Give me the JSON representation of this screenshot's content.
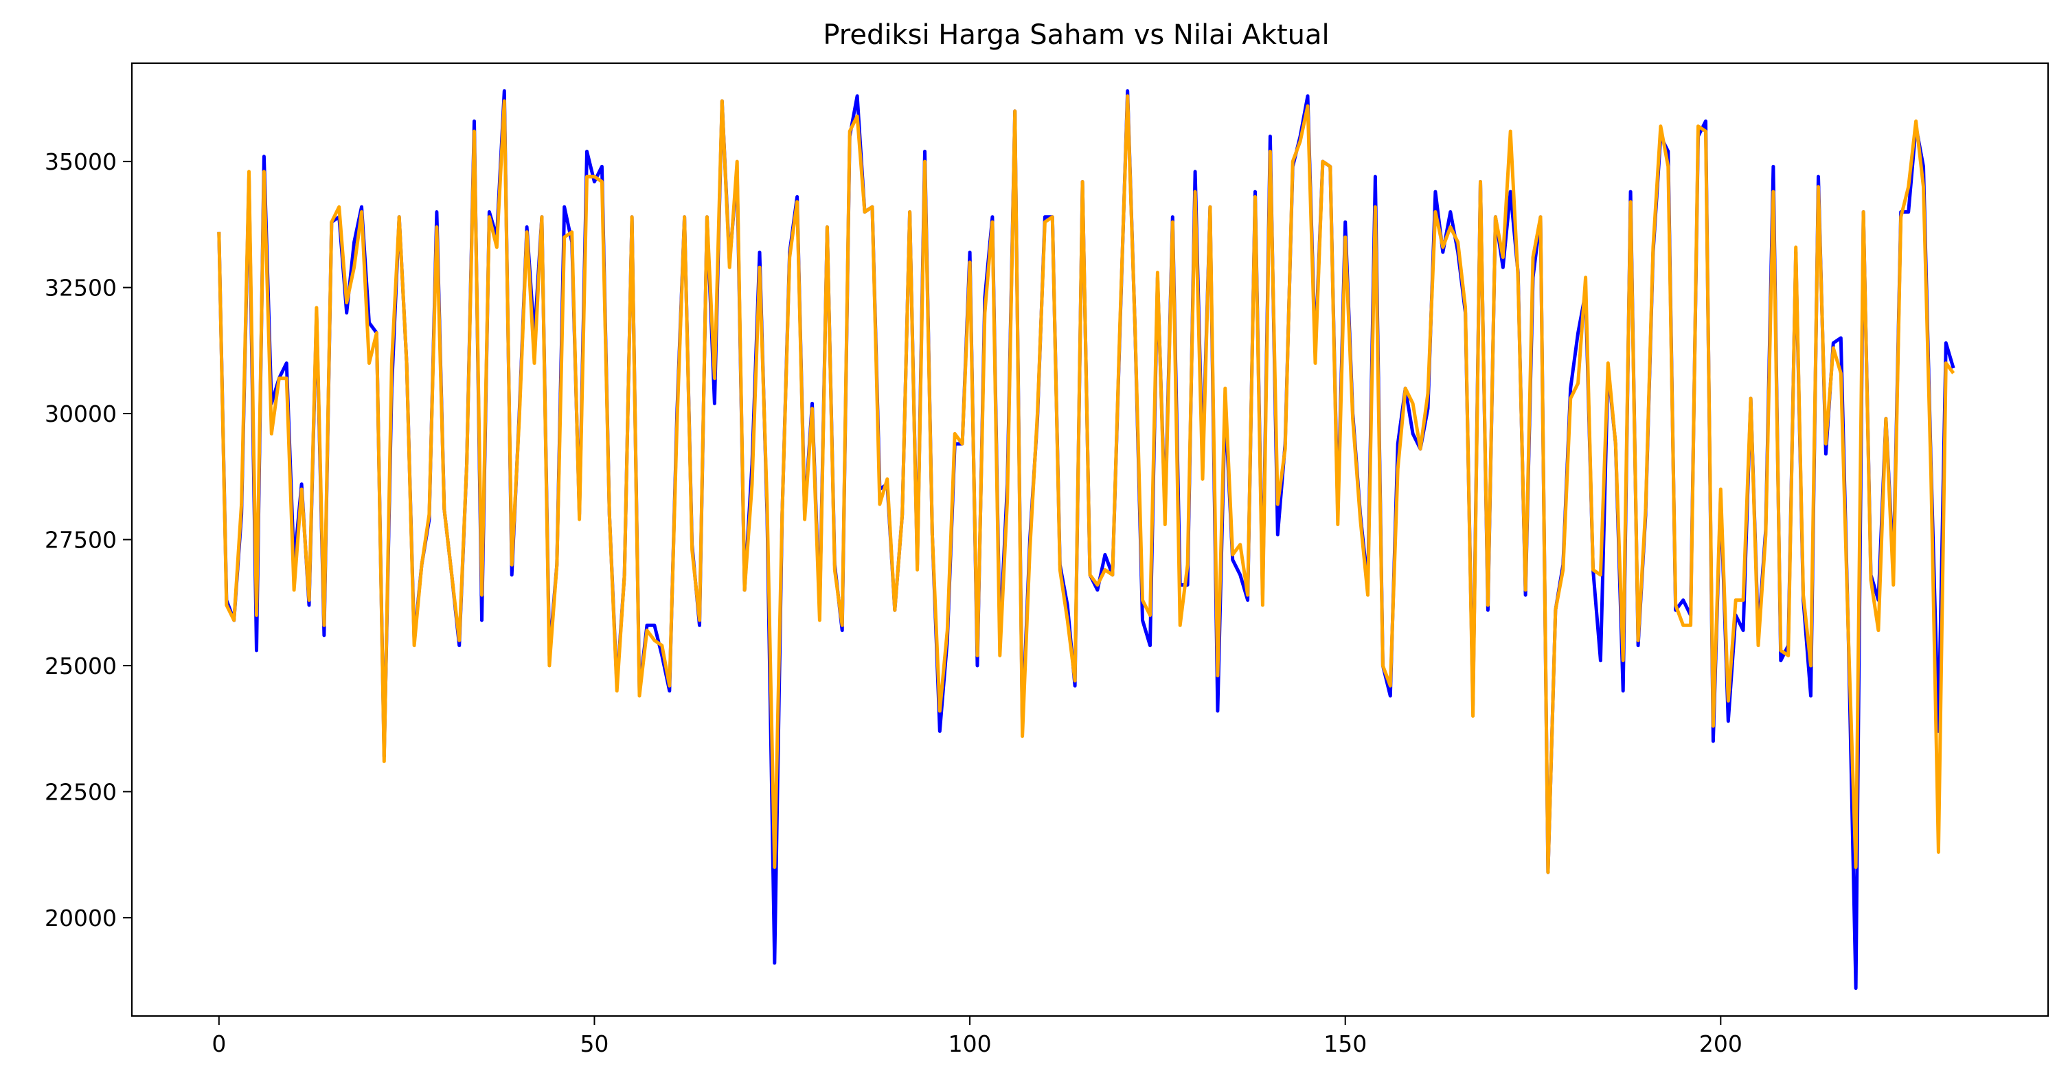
{
  "chart_data": {
    "type": "line",
    "title": "Prediksi Harga Saham vs Nilai Aktual",
    "xlabel": "",
    "ylabel": "",
    "xlim": [
      -11.6,
      243.6
    ],
    "ylim": [
      18050,
      36950
    ],
    "x_ticks": [
      0,
      50,
      100,
      150,
      200
    ],
    "x_tick_labels": [
      "0",
      "50",
      "100",
      "150",
      "200"
    ],
    "y_ticks": [
      20000,
      22500,
      25000,
      27500,
      30000,
      32500,
      35000
    ],
    "y_tick_labels": [
      "20000",
      "22500",
      "25000",
      "27500",
      "30000",
      "32500",
      "35000"
    ],
    "grid": false,
    "legend": "none",
    "series": [
      {
        "color": "#0000ff",
        "values": [
          33600,
          26300,
          25900,
          28000,
          34700,
          25300,
          35100,
          30200,
          30700,
          31000,
          27000,
          28600,
          26200,
          32000,
          25600,
          33800,
          33900,
          32000,
          33400,
          34100,
          31800,
          31600,
          23200,
          30500,
          33900,
          31000,
          25500,
          27000,
          27900,
          34000,
          28100,
          26800,
          25400,
          29000,
          35800,
          25900,
          34000,
          33500,
          36400,
          26800,
          30000,
          33700,
          31500,
          33900,
          25200,
          27000,
          34100,
          33400,
          28000,
          35200,
          34600,
          34900,
          28000,
          24600,
          26800,
          33900,
          24500,
          25800,
          25800,
          25200,
          24500,
          30000,
          33900,
          27400,
          25800,
          33900,
          30200,
          36200,
          33000,
          34800,
          26500,
          29000,
          33200,
          28000,
          19100,
          28000,
          33200,
          34300,
          28000,
          30200,
          26100,
          33700,
          27000,
          25700,
          35500,
          36300,
          34000,
          34100,
          28500,
          28600,
          26100,
          28000,
          34000,
          27000,
          35200,
          27600,
          23700,
          25500,
          29400,
          29400,
          33200,
          25000,
          32300,
          33900,
          25500,
          28600,
          36000,
          23800,
          27500,
          29900,
          33900,
          33900,
          27000,
          26200,
          24600,
          34600,
          26800,
          26500,
          27200,
          26800,
          31700,
          36400,
          31700,
          25900,
          25400,
          32700,
          28000,
          33900,
          26600,
          26600,
          34800,
          29000,
          34100,
          24100,
          30200,
          27100,
          26800,
          26300,
          34400,
          26400,
          35500,
          27600,
          29400,
          34900,
          35500,
          36300,
          31200,
          35000,
          34900,
          28000,
          33800,
          30000,
          28000,
          26600,
          34700,
          25000,
          24400,
          29400,
          30500,
          29600,
          29300,
          30100,
          34400,
          33200,
          34000,
          33200,
          32000,
          24200,
          34600,
          26100,
          33900,
          32900,
          34400,
          32800,
          26400,
          32700,
          33900,
          20900,
          26100,
          27000,
          30500,
          31600,
          32400,
          26900,
          25100,
          30900,
          29400,
          24500,
          34400,
          25400,
          28000,
          33200,
          35500,
          35200,
          26100,
          26300,
          26000,
          35500,
          35800,
          23500,
          28400,
          23900,
          26000,
          25700,
          30300,
          25600,
          27700,
          34900,
          25100,
          25400,
          33200,
          26300,
          24400,
          34700,
          29200,
          31400,
          31500,
          25600,
          18600,
          34000,
          26800,
          26300,
          29900,
          26900,
          34000,
          34000,
          35700,
          34900,
          29000,
          23700,
          31400,
          30900
        ]
      },
      {
        "color": "#ffa500",
        "values": [
          33600,
          26200,
          25900,
          28200,
          34800,
          26000,
          34800,
          29600,
          30700,
          30700,
          26500,
          28500,
          26300,
          32100,
          25800,
          33800,
          34100,
          32200,
          32900,
          34000,
          31000,
          31600,
          23100,
          31000,
          33900,
          31000,
          25400,
          27000,
          28000,
          33700,
          28100,
          26800,
          25500,
          29000,
          35600,
          26400,
          33900,
          33300,
          36200,
          27000,
          29900,
          33600,
          31000,
          33900,
          25000,
          27000,
          33500,
          33600,
          27900,
          34700,
          34700,
          34600,
          28000,
          24500,
          26800,
          33900,
          24400,
          25700,
          25500,
          25400,
          24600,
          29800,
          33900,
          27300,
          25900,
          33900,
          30700,
          36200,
          32900,
          35000,
          26500,
          28600,
          32900,
          28200,
          21000,
          28000,
          33100,
          34200,
          27900,
          30100,
          25900,
          33700,
          26900,
          25800,
          35600,
          35900,
          34000,
          34100,
          28200,
          28700,
          26100,
          28000,
          34000,
          26900,
          35000,
          27600,
          24100,
          25700,
          29600,
          29400,
          33000,
          25200,
          32000,
          33800,
          25200,
          28300,
          36000,
          23600,
          27300,
          30000,
          33800,
          33900,
          26900,
          25900,
          24700,
          34600,
          26800,
          26600,
          26900,
          26800,
          31800,
          36300,
          31700,
          26300,
          26000,
          32800,
          27800,
          33800,
          25800,
          27000,
          34400,
          28700,
          34100,
          24800,
          30500,
          27200,
          27400,
          26400,
          34300,
          26200,
          35200,
          28200,
          29300,
          35000,
          35400,
          36100,
          31000,
          35000,
          34900,
          27800,
          33500,
          29900,
          27900,
          26400,
          34100,
          25000,
          24600,
          28900,
          30500,
          30200,
          29300,
          30400,
          34000,
          33300,
          33700,
          33400,
          32100,
          24000,
          34600,
          26200,
          33900,
          33100,
          35600,
          32700,
          26500,
          33100,
          33900,
          20900,
          26100,
          26900,
          30300,
          30600,
          32700,
          26900,
          26800,
          31000,
          29400,
          25100,
          34200,
          25500,
          28100,
          33300,
          35700,
          34900,
          26200,
          25800,
          25800,
          35700,
          35600,
          23800,
          28500,
          24300,
          26300,
          26300,
          30300,
          25400,
          27600,
          34400,
          25300,
          25200,
          33300,
          26400,
          25000,
          34500,
          29400,
          31300,
          30800,
          25600,
          21000,
          34000,
          26700,
          25700,
          29900,
          26600,
          33900,
          34500,
          35800,
          34500,
          28800,
          21300,
          31000,
          30800
        ]
      }
    ]
  }
}
